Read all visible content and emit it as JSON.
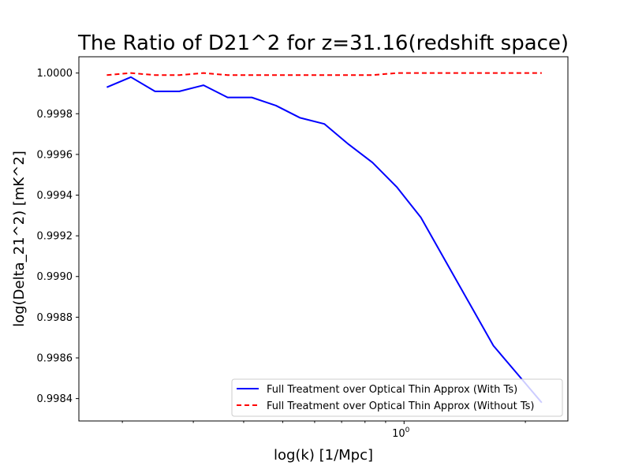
{
  "chart_data": {
    "type": "line",
    "title": "The Ratio of D21^2 for z=31.16(redshift space)",
    "xlabel": "log(k) [1/Mpc]",
    "ylabel": "log(Delta_21^2) [mK^2]",
    "xscale": "log",
    "xlim": [
      0.156,
      2.55
    ],
    "ylim": [
      0.99829,
      1.00008
    ],
    "xticks": [
      {
        "value": 1.0,
        "label": "10^0"
      }
    ],
    "x_minor_ticks": [
      0.2,
      0.3,
      0.4,
      0.5,
      0.6,
      0.7,
      0.8,
      0.9,
      2.0
    ],
    "yticks": [
      0.9984,
      0.9986,
      0.9988,
      0.999,
      0.9992,
      0.9994,
      0.9996,
      0.9998,
      1.0
    ],
    "ytick_labels": [
      "0.9984",
      "0.9986",
      "0.9988",
      "0.9990",
      "0.9992",
      "0.9994",
      "0.9996",
      "0.9998",
      "1.0000"
    ],
    "grid": false,
    "legend_position": "lower-right",
    "series": [
      {
        "name": "Full Treatment over Optical Thin Approx (With Ts)",
        "color": "#0000ff",
        "style": "solid",
        "x": [
          0.183,
          0.21,
          0.241,
          0.277,
          0.318,
          0.365,
          0.419,
          0.481,
          0.552,
          0.634,
          0.728,
          0.835,
          0.959,
          1.101,
          1.264,
          1.451,
          1.666,
          1.913,
          2.196
        ],
        "y": [
          0.99993,
          0.99998,
          0.99991,
          0.99991,
          0.99994,
          0.99988,
          0.99988,
          0.99984,
          0.99978,
          0.99975,
          0.99965,
          0.99956,
          0.99944,
          0.99929,
          0.99908,
          0.99887,
          0.99866,
          0.99852,
          0.99838
        ]
      },
      {
        "name": "Full Treatment over Optical Thin Approx (Without Ts)",
        "color": "#ff0000",
        "style": "dashed",
        "x": [
          0.183,
          0.21,
          0.241,
          0.277,
          0.318,
          0.365,
          0.419,
          0.481,
          0.552,
          0.634,
          0.728,
          0.835,
          0.959,
          1.101,
          1.264,
          1.451,
          1.666,
          1.913,
          2.196
        ],
        "y": [
          0.99999,
          1.0,
          0.99999,
          0.99999,
          1.0,
          0.99999,
          0.99999,
          0.99999,
          0.99999,
          0.99999,
          0.99999,
          0.99999,
          1.0,
          1.0,
          1.0,
          1.0,
          1.0,
          1.0,
          1.0
        ]
      }
    ]
  }
}
